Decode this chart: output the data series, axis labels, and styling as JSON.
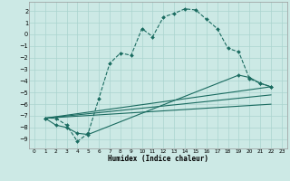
{
  "bg_color": "#cce9e5",
  "grid_color": "#aad4cf",
  "line_color": "#1a6b60",
  "xlim": [
    -0.5,
    23.5
  ],
  "ylim": [
    -9.8,
    2.8
  ],
  "xticks": [
    0,
    1,
    2,
    3,
    4,
    5,
    6,
    7,
    8,
    9,
    10,
    11,
    12,
    13,
    14,
    15,
    16,
    17,
    18,
    19,
    20,
    21,
    22,
    23
  ],
  "yticks": [
    2,
    1,
    0,
    -1,
    -2,
    -3,
    -4,
    -5,
    -6,
    -7,
    -8,
    -9
  ],
  "xlabel": "Humidex (Indice chaleur)",
  "line1_x": [
    1,
    2,
    3,
    4,
    5,
    6,
    7,
    8,
    9,
    10,
    11,
    12,
    13,
    14,
    15,
    16,
    17,
    18,
    19,
    20,
    21,
    22
  ],
  "line1_y": [
    -7.2,
    -7.2,
    -7.8,
    -9.2,
    -8.5,
    -5.5,
    -2.5,
    -1.6,
    -1.8,
    0.5,
    -0.2,
    1.5,
    1.8,
    2.2,
    2.1,
    1.3,
    0.5,
    -1.2,
    -1.5,
    -3.8,
    -4.2,
    -4.5
  ],
  "line2_x": [
    1,
    2,
    3,
    4,
    5,
    19,
    20,
    21,
    22
  ],
  "line2_y": [
    -7.2,
    -7.8,
    -8.0,
    -8.5,
    -8.6,
    -3.5,
    -3.7,
    -4.2,
    -4.5
  ],
  "line3_x": [
    1,
    22
  ],
  "line3_y": [
    -7.2,
    -4.5
  ],
  "line4_x": [
    1,
    22
  ],
  "line4_y": [
    -7.2,
    -5.2
  ],
  "line5_x": [
    1,
    22
  ],
  "line5_y": [
    -7.2,
    -6.0
  ]
}
